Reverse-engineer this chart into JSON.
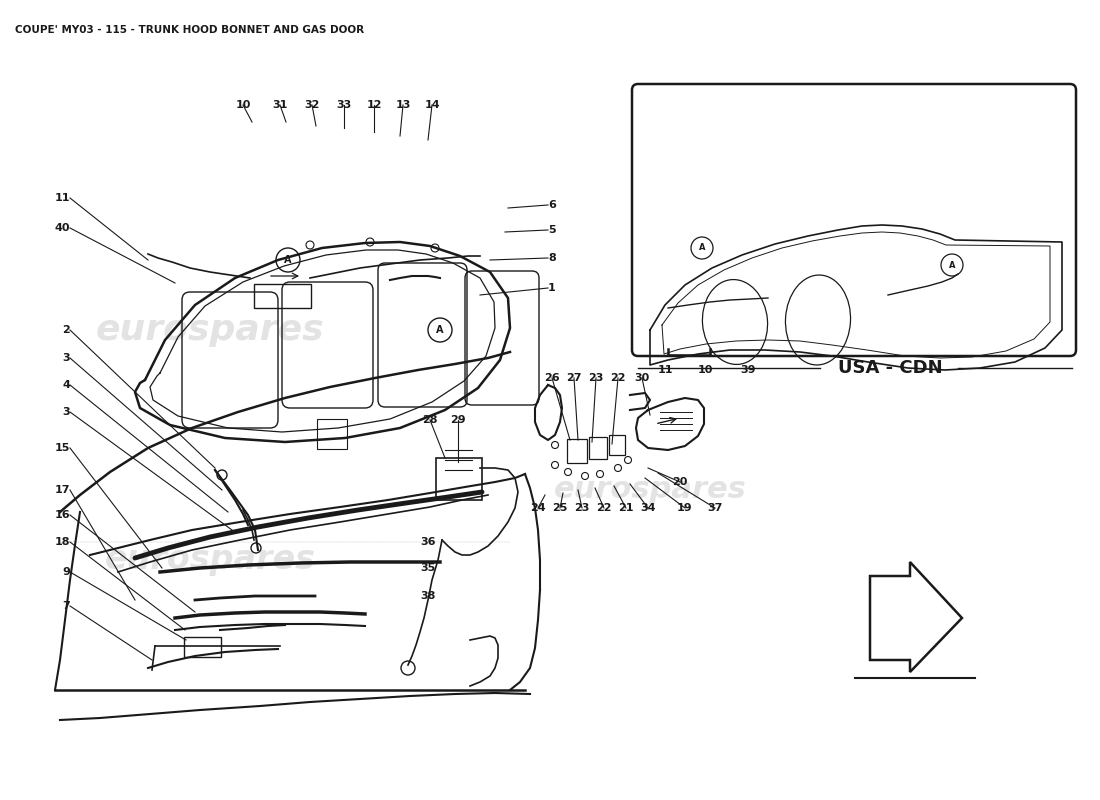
{
  "title": "COUPE' MY03 - 115 - TRUNK HOOD BONNET AND GAS DOOR",
  "title_fontsize": 7.5,
  "background_color": "#ffffff",
  "line_color": "#1a1a1a",
  "watermark_color": "#c8c8c8",
  "watermark_text": "eurospares",
  "usa_cdn_label": "USA - CDN",
  "figsize": [
    11.0,
    8.0
  ],
  "dpi": 100
}
